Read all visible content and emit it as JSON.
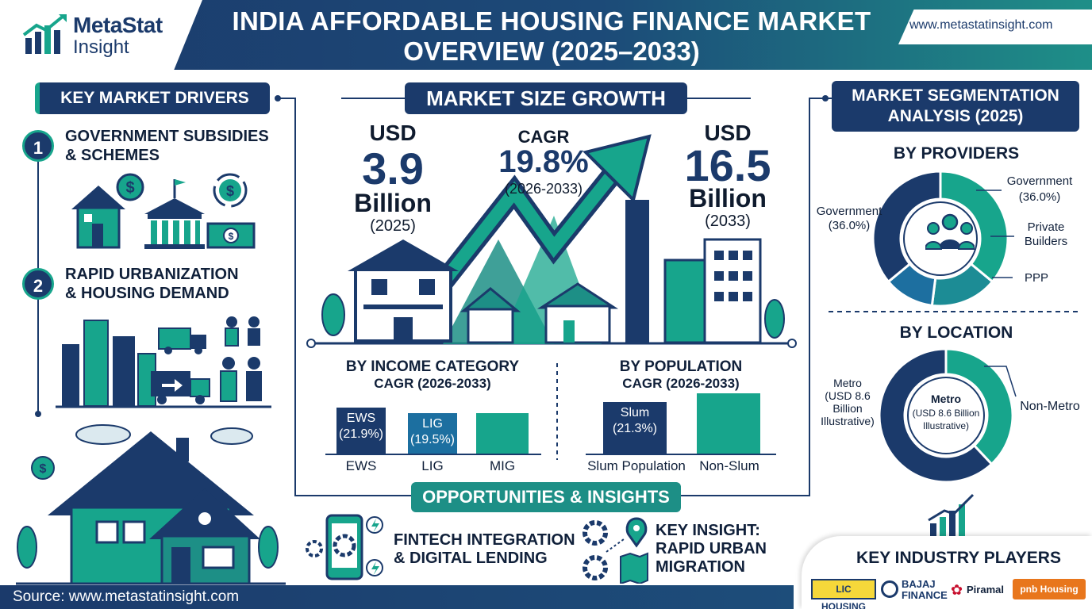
{
  "brand": {
    "name_line1": "MetaStat",
    "name_line2": "Insight",
    "website": "www.metastatinsight.com"
  },
  "title": {
    "line1": "INDIA AFFORDABLE HOUSING FINANCE MARKET",
    "line2": "OVERVIEW (2025–2033)"
  },
  "drivers": {
    "heading": "KEY MARKET DRIVERS",
    "items": [
      {
        "number": "1",
        "line1": "GOVERNMENT SUBSIDIES",
        "line2": "& SCHEMES"
      },
      {
        "number": "2",
        "line1": "RAPID URBANIZATION",
        "line2": "& HOUSING DEMAND"
      }
    ]
  },
  "growth": {
    "heading": "MARKET SIZE GROWTH",
    "start": {
      "currency": "USD",
      "value": "3.9",
      "unit": "Billion",
      "year": "(2025)"
    },
    "cagr": {
      "label": "CAGR",
      "value": "19.8%",
      "period": "(2026-2033)"
    },
    "end": {
      "currency": "USD",
      "value": "16.5",
      "unit": "Billion",
      "year": "(2033)"
    }
  },
  "income": {
    "title": "BY INCOME CATEGORY",
    "cagr": "CAGR (2026-2033)",
    "bars": [
      {
        "name": "EWS",
        "inner": "EWS",
        "pct": "(21.9%)",
        "value": 21.9,
        "color": "#1b3a6b"
      },
      {
        "name": "LIG",
        "inner": "LIG",
        "pct": "(19.5%)",
        "value": 19.5,
        "color": "#1c6fa0"
      },
      {
        "name": "MIG",
        "inner": "",
        "pct": "",
        "value": 19.5,
        "color": "#17a58c"
      }
    ]
  },
  "population": {
    "title": "BY POPULATION",
    "cagr": "CAGR (2026-2033)",
    "bars": [
      {
        "name": "Slum Population",
        "inner": "Slum",
        "pct": "(21.3%)",
        "value": 21.3,
        "color": "#1b3a6b"
      },
      {
        "name": "Non-Slum",
        "inner": "",
        "pct": "",
        "value": 25.0,
        "color": "#17a58c"
      }
    ]
  },
  "opportunities": {
    "heading": "OPPORTUNITIES & INSIGHTS",
    "items": [
      {
        "line1": "FINTECH INTEGRATION",
        "line2": "& DIGITAL LENDING"
      },
      {
        "line1": "KEY INSIGHT:",
        "line2": "RAPID URBAN",
        "line3": "MIGRATION"
      }
    ]
  },
  "segmentation": {
    "heading_line1": "MARKET SEGMENTATION",
    "heading_line2": "ANALYSIS (2025)",
    "providers": {
      "title": "BY PROVIDERS",
      "labels": {
        "gov_left": "Government",
        "gov_left_pct": "(36.0%)",
        "gov_right": "Government",
        "gov_right_pct": "(36.0%)",
        "private1": "Private",
        "private2": "Builders",
        "ppp": "PPP"
      },
      "slices": [
        {
          "name": "Government",
          "value": 36,
          "color": "#17a58c"
        },
        {
          "name": "Private Builders",
          "value": 16,
          "color": "#1c8c95"
        },
        {
          "name": "PPP",
          "value": 12,
          "color": "#1d6fa0"
        },
        {
          "name": "Government",
          "value": 36,
          "color": "#1b3a6b"
        }
      ]
    },
    "location": {
      "title": "BY LOCATION",
      "outer_metro": [
        "Metro",
        "(USD 8.6",
        "Billion",
        "Illustrative)"
      ],
      "center": [
        "Metro",
        "(USD 8.6 Billion",
        "Illustrative)"
      ],
      "non_metro": "Non-Metro",
      "slices": [
        {
          "name": "Non-Metro",
          "value": 38,
          "color": "#17a58c"
        },
        {
          "name": "Metro",
          "value": 62,
          "color": "#1b3a6b"
        }
      ]
    }
  },
  "players": {
    "title": "KEY INDUSTRY PLAYERS",
    "logos": [
      "LIC HOUSING",
      "BAJAJ",
      "FINANCE",
      "Piramal",
      "pnb Housing"
    ]
  },
  "footer": {
    "source": "Source: www.metastatinsight.com"
  }
}
